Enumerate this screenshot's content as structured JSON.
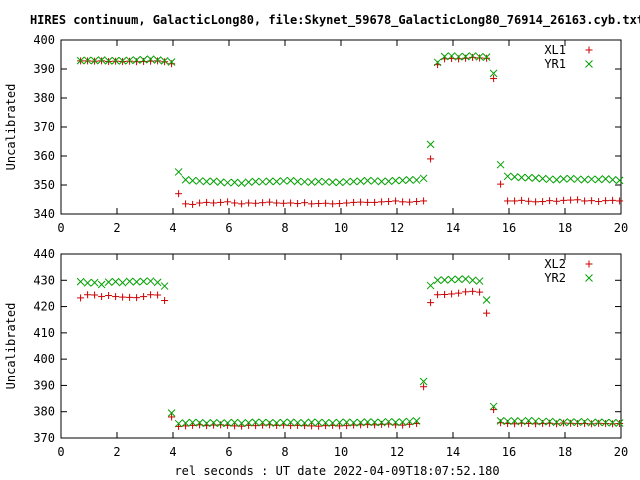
{
  "page_title": "HIRES continuum, GalacticLong80, file:Skynet_59678_GalacticLong80_76914_26163.cyb.txt",
  "shared_xlabel": "rel seconds : UT date 2022-04-09T18:07:52.180",
  "colors": {
    "series_a": "#cc0000",
    "series_b": "#00a000",
    "axes": "#000000",
    "background": "#ffffff"
  },
  "chart_data": [
    {
      "type": "scatter",
      "ylabel": "Uncalibrated",
      "xlim": [
        0,
        20
      ],
      "ylim": [
        340,
        400
      ],
      "xticks": [
        0,
        2,
        4,
        6,
        8,
        10,
        12,
        14,
        16,
        18,
        20
      ],
      "yticks": [
        340,
        350,
        360,
        370,
        380,
        390,
        400
      ],
      "grid": false,
      "legend_position": "top-right",
      "x": [
        0.7,
        0.95,
        1.2,
        1.45,
        1.7,
        1.95,
        2.2,
        2.45,
        2.7,
        2.95,
        3.2,
        3.45,
        3.7,
        3.95,
        4.2,
        4.45,
        4.7,
        4.95,
        5.2,
        5.45,
        5.7,
        5.95,
        6.2,
        6.45,
        6.7,
        6.95,
        7.2,
        7.45,
        7.7,
        7.95,
        8.2,
        8.45,
        8.7,
        8.95,
        9.2,
        9.45,
        9.7,
        9.95,
        10.2,
        10.45,
        10.7,
        10.95,
        11.2,
        11.45,
        11.7,
        11.95,
        12.2,
        12.45,
        12.7,
        12.95,
        13.2,
        13.45,
        13.7,
        13.95,
        14.2,
        14.45,
        14.7,
        14.95,
        15.2,
        15.45,
        15.7,
        15.95,
        16.2,
        16.45,
        16.7,
        16.95,
        17.2,
        17.45,
        17.7,
        17.95,
        18.2,
        18.45,
        18.7,
        18.95,
        19.2,
        19.45,
        19.7,
        19.95
      ],
      "series": [
        {
          "name": "XL1",
          "marker": "+",
          "color": "#cc0000",
          "values": [
            392.8,
            392.8,
            392.7,
            392.8,
            392.6,
            392.7,
            392.6,
            392.7,
            392.5,
            392.6,
            392.7,
            392.8,
            392.5,
            391.8,
            347.0,
            343.5,
            343.3,
            343.8,
            344.0,
            343.8,
            344.0,
            344.2,
            343.8,
            343.5,
            343.8,
            343.7,
            343.9,
            344.1,
            343.8,
            343.7,
            343.8,
            343.6,
            343.9,
            343.5,
            343.6,
            343.7,
            343.5,
            343.6,
            343.8,
            344.0,
            344.1,
            344.0,
            344.0,
            344.2,
            344.3,
            344.5,
            344.2,
            344.1,
            344.3,
            344.5,
            359.0,
            391.5,
            393.5,
            393.6,
            393.5,
            393.7,
            394.0,
            393.8,
            393.7,
            386.7,
            350.3,
            344.5,
            344.5,
            344.7,
            344.4,
            344.2,
            344.3,
            344.6,
            344.4,
            344.7,
            344.8,
            344.9,
            344.5,
            344.6,
            344.3,
            344.6,
            344.7,
            344.5
          ]
        },
        {
          "name": "YR1",
          "marker": "x",
          "color": "#00a000",
          "values": [
            392.9,
            393.0,
            392.9,
            393.1,
            392.8,
            392.9,
            392.8,
            393.0,
            393.1,
            393.2,
            393.4,
            393.1,
            392.8,
            392.4,
            354.5,
            351.8,
            351.5,
            351.4,
            351.2,
            351.3,
            351.0,
            350.8,
            350.9,
            350.6,
            351.0,
            351.2,
            351.1,
            351.3,
            351.2,
            351.4,
            351.5,
            351.2,
            351.1,
            351.0,
            351.2,
            351.1,
            351.0,
            350.9,
            351.1,
            351.2,
            351.3,
            351.5,
            351.4,
            351.2,
            351.3,
            351.5,
            351.6,
            351.8,
            351.7,
            352.3,
            364.0,
            392.3,
            394.3,
            394.5,
            394.2,
            394.3,
            394.5,
            394.2,
            394.1,
            388.5,
            357.0,
            353.0,
            352.8,
            352.6,
            352.5,
            352.4,
            352.2,
            352.0,
            351.8,
            352.1,
            352.2,
            352.0,
            351.8,
            352.0,
            351.9,
            352.1,
            351.8,
            351.6
          ]
        }
      ]
    },
    {
      "type": "scatter",
      "ylabel": "Uncalibrated",
      "xlabel": "rel seconds : UT date 2022-04-09T18:07:52.180",
      "xlim": [
        0,
        20
      ],
      "ylim": [
        370,
        440
      ],
      "xticks": [
        0,
        2,
        4,
        6,
        8,
        10,
        12,
        14,
        16,
        18,
        20
      ],
      "yticks": [
        370,
        380,
        390,
        400,
        410,
        420,
        430,
        440
      ],
      "grid": false,
      "legend_position": "top-right",
      "x": [
        0.7,
        0.95,
        1.2,
        1.45,
        1.7,
        1.95,
        2.2,
        2.45,
        2.7,
        2.95,
        3.2,
        3.45,
        3.7,
        3.95,
        4.2,
        4.45,
        4.7,
        4.95,
        5.2,
        5.45,
        5.7,
        5.95,
        6.2,
        6.45,
        6.7,
        6.95,
        7.2,
        7.45,
        7.7,
        7.95,
        8.2,
        8.45,
        8.7,
        8.95,
        9.2,
        9.45,
        9.7,
        9.95,
        10.2,
        10.45,
        10.7,
        10.95,
        11.2,
        11.45,
        11.7,
        11.95,
        12.2,
        12.45,
        12.7,
        12.95,
        13.2,
        13.45,
        13.7,
        13.95,
        14.2,
        14.45,
        14.7,
        14.95,
        15.2,
        15.45,
        15.7,
        15.95,
        16.2,
        16.45,
        16.7,
        16.95,
        17.2,
        17.45,
        17.7,
        17.95,
        18.2,
        18.45,
        18.7,
        18.95,
        19.2,
        19.45,
        19.7,
        19.95
      ],
      "series": [
        {
          "name": "XL2",
          "marker": "+",
          "color": "#cc0000",
          "values": [
            423.3,
            424.5,
            424.4,
            423.8,
            424.2,
            423.8,
            423.6,
            423.5,
            423.4,
            423.8,
            424.5,
            424.4,
            422.3,
            378.0,
            374.4,
            374.6,
            374.8,
            375.0,
            374.7,
            374.9,
            375.0,
            374.8,
            374.6,
            374.5,
            374.8,
            374.7,
            374.9,
            375.0,
            374.8,
            374.9,
            374.7,
            374.8,
            374.7,
            374.6,
            374.5,
            374.7,
            374.8,
            374.6,
            374.7,
            374.9,
            375.0,
            375.1,
            375.0,
            375.2,
            375.3,
            375.0,
            374.9,
            375.2,
            375.5,
            389.5,
            421.5,
            424.5,
            424.6,
            424.8,
            425.1,
            425.6,
            425.8,
            425.5,
            417.5,
            380.8,
            375.8,
            375.5,
            375.4,
            375.6,
            375.5,
            375.4,
            375.5,
            375.6,
            375.4,
            375.7,
            375.6,
            375.5,
            375.5,
            375.4,
            375.6,
            375.5,
            375.4,
            375.5
          ]
        },
        {
          "name": "YR2",
          "marker": "x",
          "color": "#00a000",
          "values": [
            429.5,
            429.0,
            429.1,
            428.4,
            429.3,
            429.5,
            429.1,
            429.6,
            429.4,
            429.6,
            429.7,
            429.2,
            427.8,
            379.5,
            375.5,
            375.7,
            375.9,
            375.8,
            375.6,
            375.8,
            375.6,
            375.7,
            375.9,
            375.6,
            375.8,
            376.0,
            375.9,
            375.8,
            375.7,
            375.9,
            376.0,
            375.8,
            375.7,
            376.0,
            375.9,
            375.8,
            375.7,
            375.9,
            376.0,
            375.8,
            375.9,
            376.1,
            376.0,
            375.9,
            376.2,
            376.0,
            376.1,
            376.3,
            376.5,
            391.5,
            428.0,
            430.0,
            430.1,
            430.3,
            430.4,
            430.5,
            430.0,
            429.7,
            422.5,
            382.0,
            376.5,
            376.4,
            376.5,
            376.3,
            376.6,
            376.4,
            376.2,
            376.3,
            376.0,
            375.9,
            376.1,
            376.0,
            376.2,
            375.8,
            376.0,
            375.9,
            375.8,
            375.7
          ]
        }
      ]
    }
  ]
}
